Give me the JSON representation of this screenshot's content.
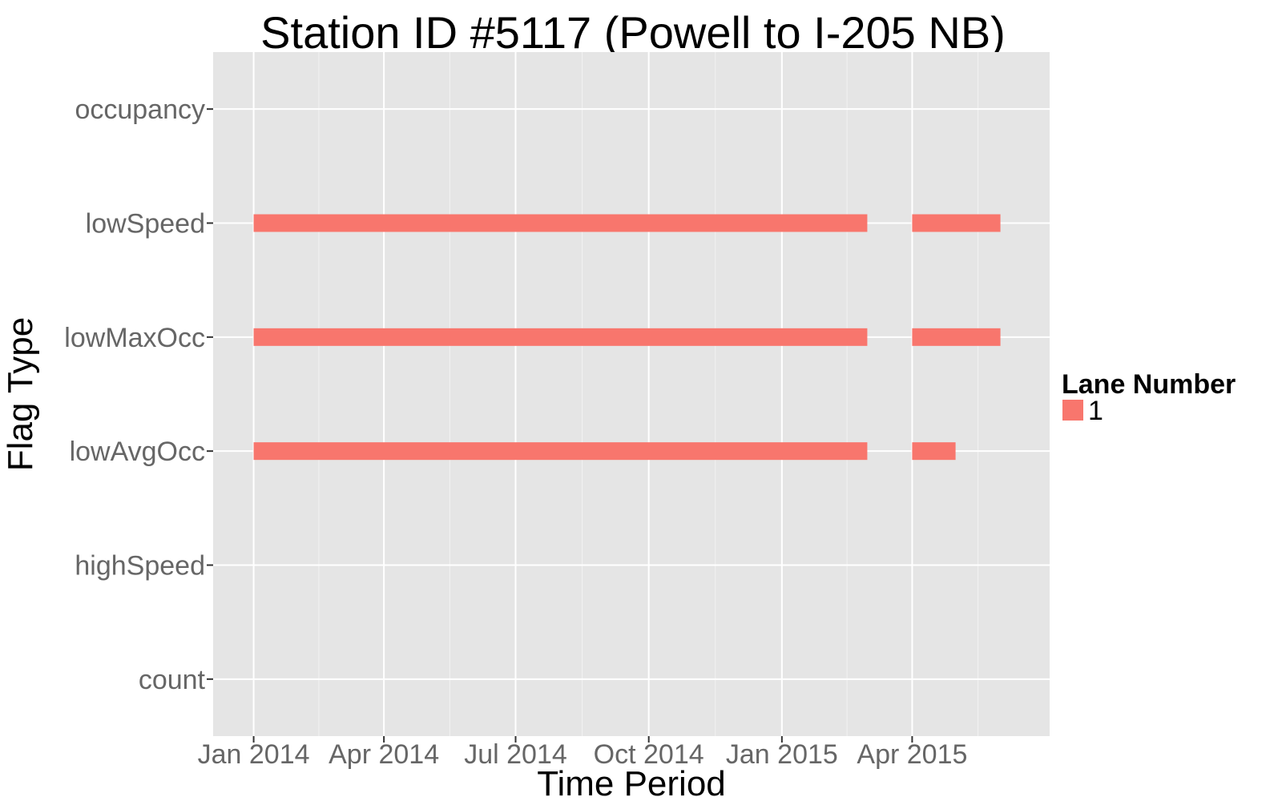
{
  "chart_data": {
    "type": "bar",
    "orientation": "horizontal-ranges",
    "title": "Station ID #5117 (Powell to I-205 NB)",
    "xlabel": "Time Period",
    "ylabel": "Flag Type",
    "x_axis_type": "date",
    "xlim": [
      "2013-12-04",
      "2015-07-05"
    ],
    "x_ticks": [
      {
        "date": "2014-01-01",
        "label": "Jan 2014"
      },
      {
        "date": "2014-04-01",
        "label": "Apr 2014"
      },
      {
        "date": "2014-07-01",
        "label": "Jul 2014"
      },
      {
        "date": "2014-10-01",
        "label": "Oct 2014"
      },
      {
        "date": "2015-01-01",
        "label": "Jan 2015"
      },
      {
        "date": "2015-04-01",
        "label": "Apr 2015"
      }
    ],
    "categories": [
      "count",
      "highSpeed",
      "lowAvgOcc",
      "lowMaxOcc",
      "lowSpeed",
      "occupancy"
    ],
    "grid": true,
    "legend": {
      "title": "Lane Number",
      "position": "right",
      "entries": [
        {
          "label": "1",
          "color": "#F8766D"
        }
      ]
    },
    "series": [
      {
        "name": "1",
        "color": "#F8766D",
        "ranges": [
          {
            "category": "lowSpeed",
            "start": "2014-01-01",
            "end": "2015-03-01"
          },
          {
            "category": "lowSpeed",
            "start": "2015-04-01",
            "end": "2015-06-01"
          },
          {
            "category": "lowMaxOcc",
            "start": "2014-01-01",
            "end": "2015-03-01"
          },
          {
            "category": "lowMaxOcc",
            "start": "2015-04-01",
            "end": "2015-06-01"
          },
          {
            "category": "lowAvgOcc",
            "start": "2014-01-01",
            "end": "2015-03-01"
          },
          {
            "category": "lowAvgOcc",
            "start": "2015-04-01",
            "end": "2015-05-01"
          }
        ]
      }
    ]
  }
}
